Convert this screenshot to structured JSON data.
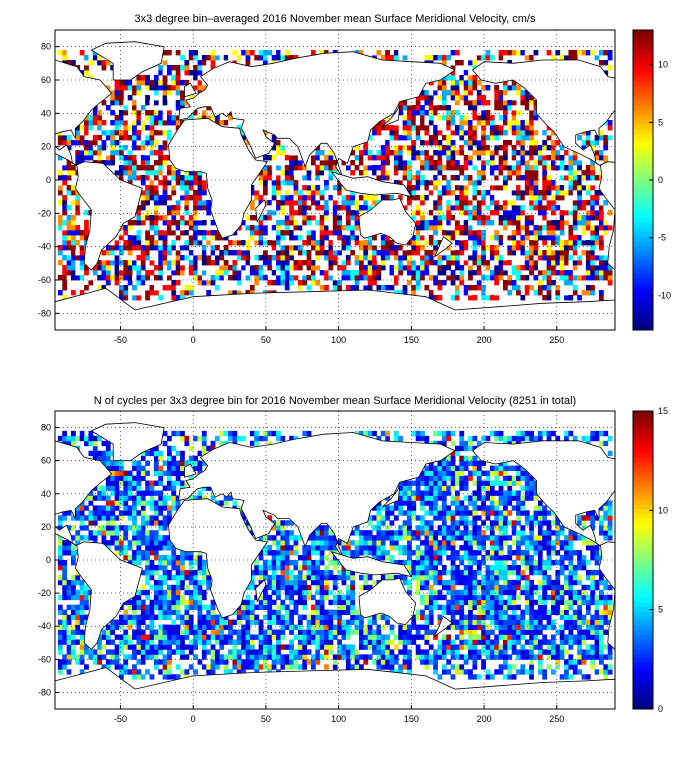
{
  "panels": [
    {
      "title": "3x3 degree bin–averaged 2016 November mean Surface Meridional Velocity, cm/s",
      "xticks": [
        "-50",
        "0",
        "50",
        "100",
        "150",
        "200",
        "250"
      ],
      "yticks": [
        "80",
        "60",
        "40",
        "20",
        "0",
        "-20",
        "-40",
        "-60",
        "-80"
      ],
      "colorbar": {
        "ticks": [
          "10",
          "5",
          "0",
          "-5",
          "-10"
        ],
        "min": -13,
        "max": 13,
        "colormap": "jet"
      },
      "xlim": [
        -95,
        290
      ],
      "ylim": [
        -90,
        90
      ],
      "field": "meridional velocity (cm/s), random-looking positive/negative values in each 3x3 ocean bin"
    },
    {
      "title": "N of cycles per 3x3 degree bin for 2016 November mean Surface Meridional Velocity (8251 in total)",
      "xticks": [
        "-50",
        "0",
        "50",
        "100",
        "150",
        "200",
        "250"
      ],
      "yticks": [
        "80",
        "60",
        "40",
        "20",
        "0",
        "-20",
        "-40",
        "-60",
        "-80"
      ],
      "colorbar": {
        "ticks": [
          "15",
          "10",
          "5",
          "0"
        ],
        "min": 0,
        "max": 15,
        "colormap": "jet"
      },
      "xlim": [
        -95,
        290
      ],
      "ylim": [
        -90,
        90
      ],
      "field": "count of cycles per bin, mostly 1–6 (blue/cyan)"
    }
  ],
  "colors": {
    "frame": "#000000",
    "grid": "#000000",
    "land": "#ffffff"
  }
}
